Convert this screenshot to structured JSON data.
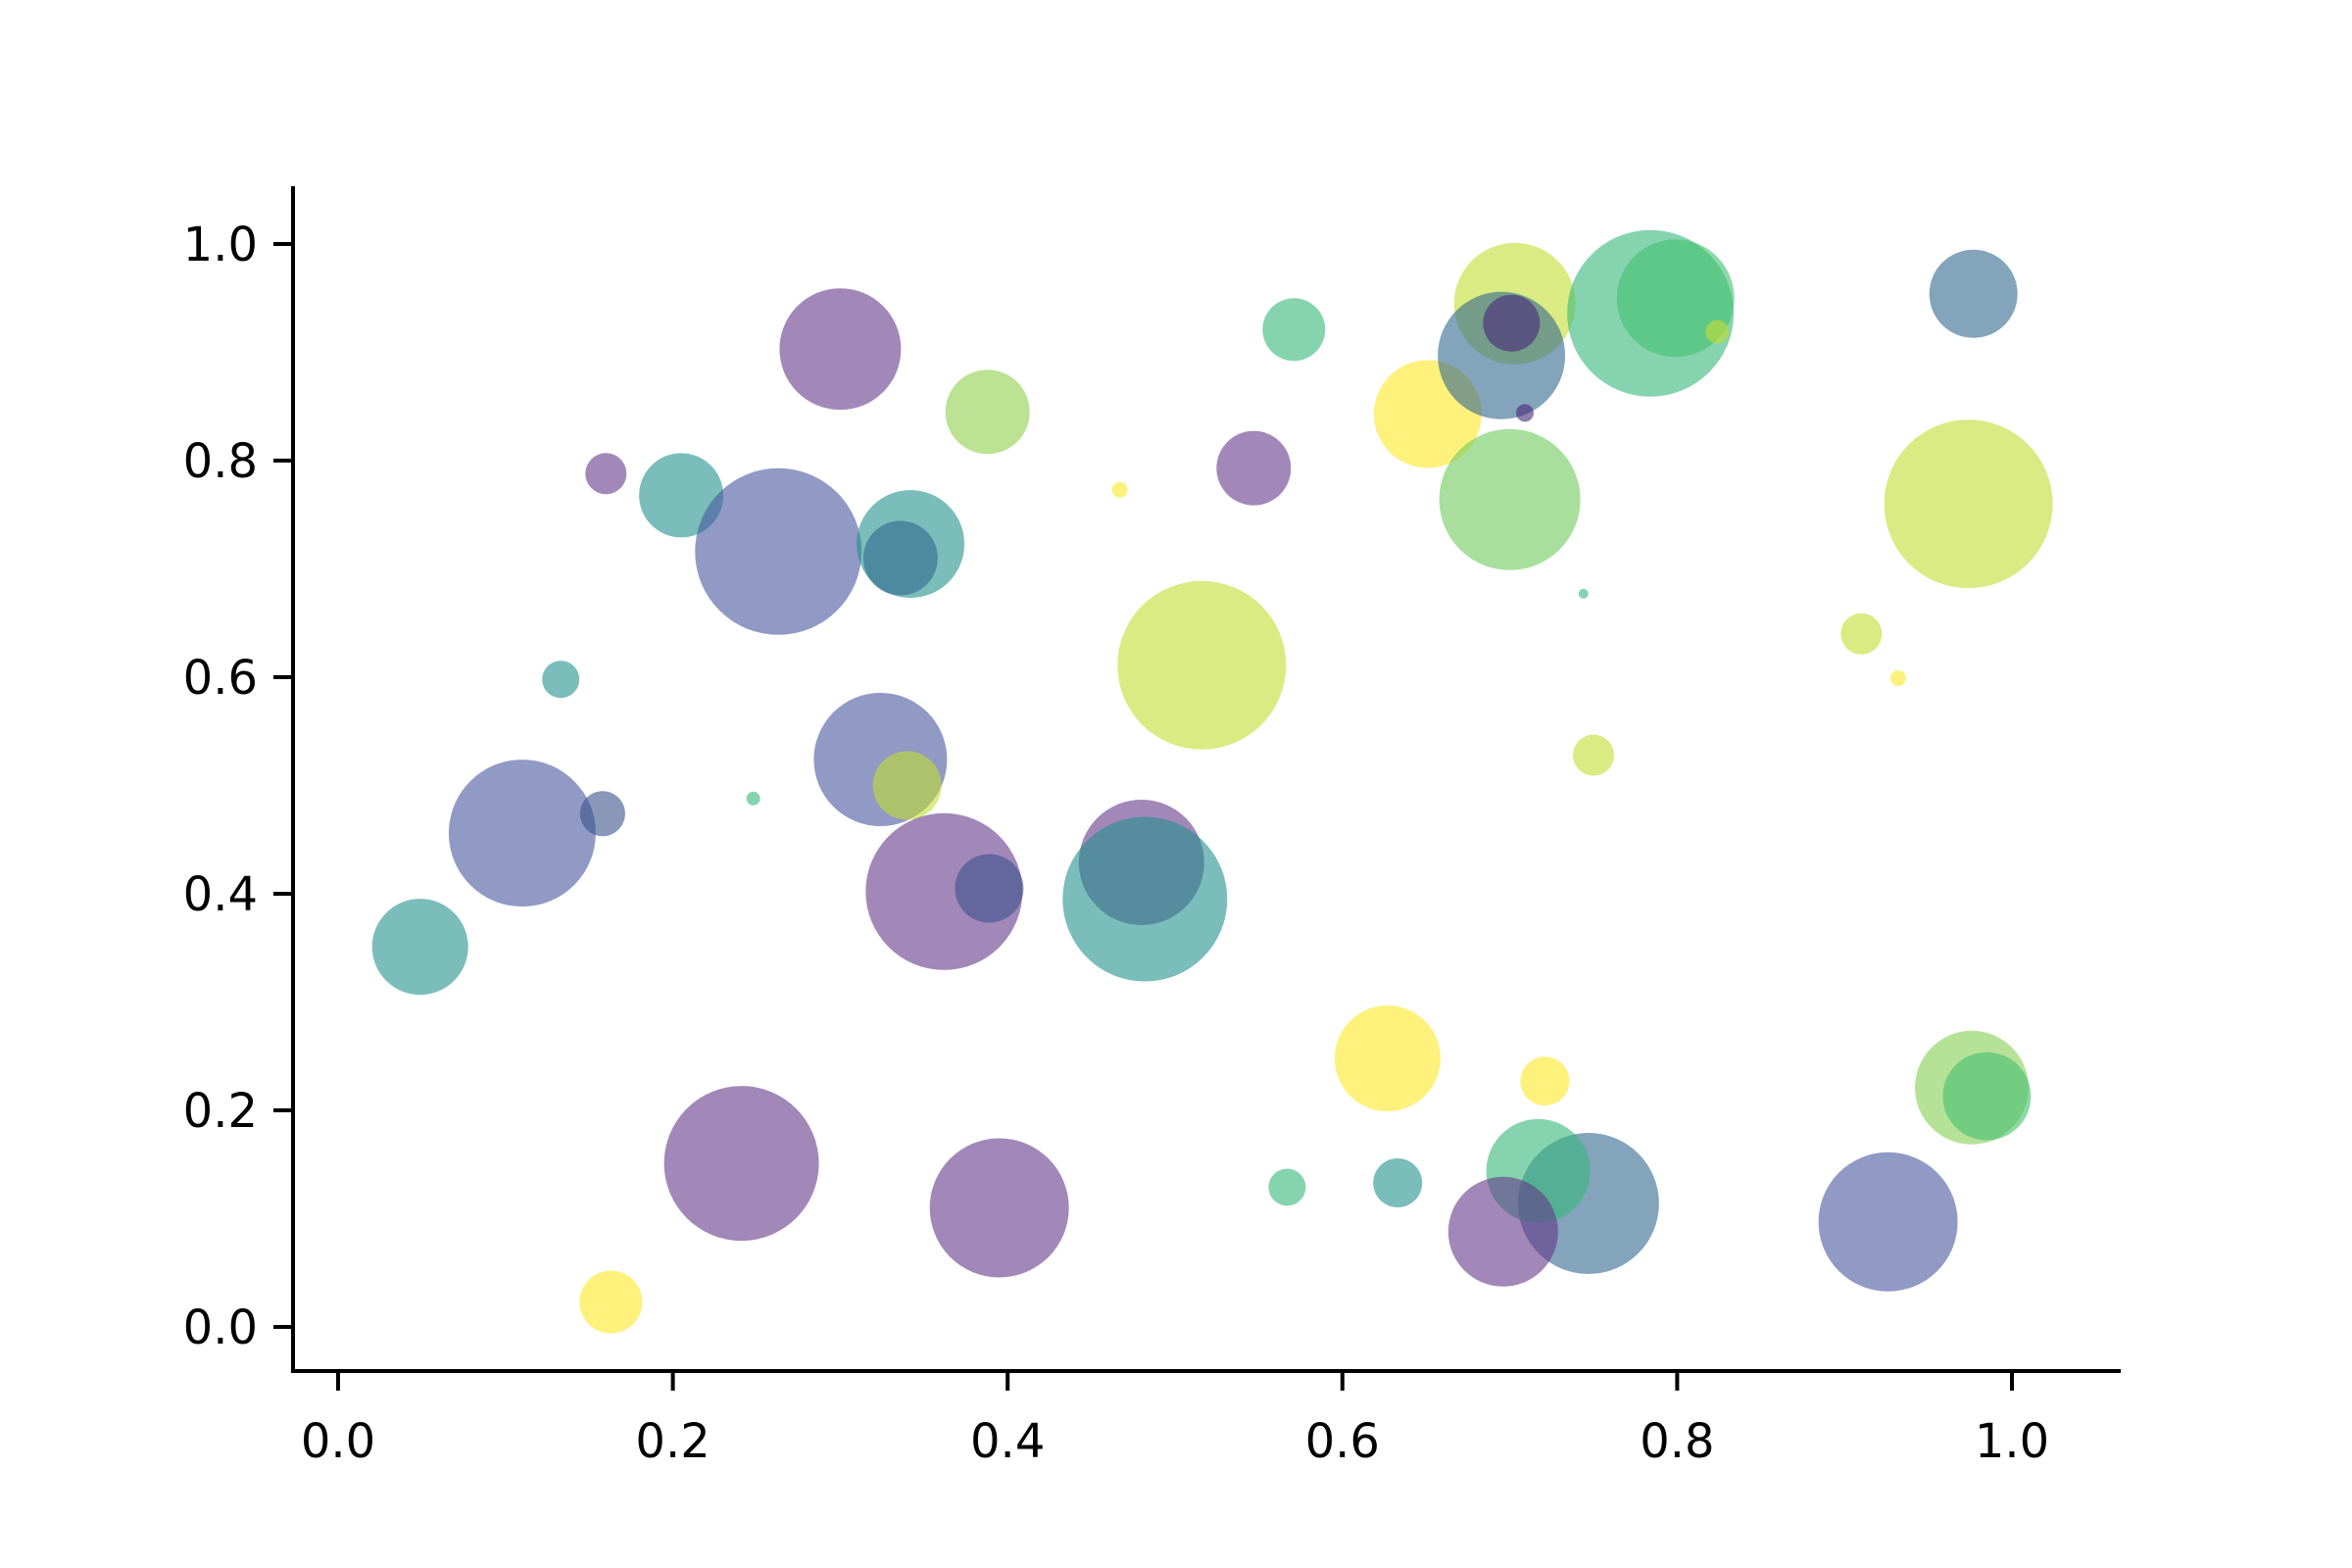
{
  "chart_data": {
    "type": "scatter",
    "subtype": "bubble",
    "title": "",
    "xlabel": "",
    "ylabel": "",
    "grid": false,
    "legend": false,
    "background": "#ffffff",
    "axis_color": "#000000",
    "marker_alpha": 0.6,
    "xlim": [
      -0.027,
      1.065
    ],
    "ylim": [
      -0.042,
      1.053
    ],
    "x_ticks": {
      "values": [
        0.0,
        0.2,
        0.4,
        0.6,
        0.8,
        1.0
      ],
      "labels": [
        "0.0",
        "0.2",
        "0.4",
        "0.6",
        "0.8",
        "1.0"
      ]
    },
    "y_ticks": {
      "values": [
        0.0,
        0.2,
        0.4,
        0.6,
        0.8,
        1.0
      ],
      "labels": [
        "0.0",
        "0.2",
        "0.4",
        "0.6",
        "0.8",
        "1.0"
      ]
    },
    "points": [
      {
        "x": 0.3,
        "y": 0.903,
        "r": 62,
        "color": "#643889"
      },
      {
        "x": 0.16,
        "y": 0.788,
        "r": 21,
        "color": "#643889"
      },
      {
        "x": 0.205,
        "y": 0.768,
        "r": 43,
        "color": "#21918c"
      },
      {
        "x": 0.263,
        "y": 0.716,
        "r": 85,
        "color": "#46569e"
      },
      {
        "x": 0.342,
        "y": 0.723,
        "r": 55,
        "color": "#21918c"
      },
      {
        "x": 0.336,
        "y": 0.71,
        "r": 38,
        "color": "#31688e"
      },
      {
        "x": 0.133,
        "y": 0.598,
        "r": 19,
        "color": "#21918c"
      },
      {
        "x": 0.11,
        "y": 0.456,
        "r": 75,
        "color": "#46569e"
      },
      {
        "x": 0.158,
        "y": 0.474,
        "r": 23,
        "color": "#3b528b"
      },
      {
        "x": 0.248,
        "y": 0.488,
        "r": 7,
        "color": "#35b779"
      },
      {
        "x": 0.049,
        "y": 0.351,
        "r": 49,
        "color": "#21918c"
      },
      {
        "x": 0.324,
        "y": 0.524,
        "r": 68,
        "color": "#46569e"
      },
      {
        "x": 0.34,
        "y": 0.5,
        "r": 35,
        "color": "#c3de30"
      },
      {
        "x": 0.362,
        "y": 0.402,
        "r": 80,
        "color": "#643889"
      },
      {
        "x": 0.389,
        "y": 0.405,
        "r": 35,
        "color": "#3b528b"
      },
      {
        "x": 0.241,
        "y": 0.151,
        "r": 79,
        "color": "#643889"
      },
      {
        "x": 0.163,
        "y": 0.023,
        "r": 32,
        "color": "#fde725"
      },
      {
        "x": 0.395,
        "y": 0.11,
        "r": 71,
        "color": "#643889"
      },
      {
        "x": 0.388,
        "y": 0.845,
        "r": 43,
        "color": "#8ed04b"
      },
      {
        "x": 0.571,
        "y": 0.921,
        "r": 32,
        "color": "#35b779"
      },
      {
        "x": 0.547,
        "y": 0.793,
        "r": 38,
        "color": "#643889"
      },
      {
        "x": 0.467,
        "y": 0.773,
        "r": 8,
        "color": "#fde725"
      },
      {
        "x": 0.516,
        "y": 0.611,
        "r": 86,
        "color": "#c3de30"
      },
      {
        "x": 0.48,
        "y": 0.429,
        "r": 64,
        "color": "#643889"
      },
      {
        "x": 0.482,
        "y": 0.395,
        "r": 84,
        "color": "#21918c"
      },
      {
        "x": 0.627,
        "y": 0.248,
        "r": 54,
        "color": "#fde725"
      },
      {
        "x": 0.721,
        "y": 0.227,
        "r": 25,
        "color": "#fde725"
      },
      {
        "x": 0.567,
        "y": 0.129,
        "r": 19,
        "color": "#35b779"
      },
      {
        "x": 0.633,
        "y": 0.133,
        "r": 25,
        "color": "#21918c"
      },
      {
        "x": 0.651,
        "y": 0.843,
        "r": 55,
        "color": "#fde725"
      },
      {
        "x": 0.703,
        "y": 0.945,
        "r": 62,
        "color": "#c3de30"
      },
      {
        "x": 0.695,
        "y": 0.897,
        "r": 65,
        "color": "#31688e"
      },
      {
        "x": 0.701,
        "y": 0.927,
        "r": 29,
        "color": "#482878"
      },
      {
        "x": 0.709,
        "y": 0.844,
        "r": 9,
        "color": "#482878"
      },
      {
        "x": 0.7,
        "y": 0.764,
        "r": 72,
        "color": "#6fc95c"
      },
      {
        "x": 0.744,
        "y": 0.677,
        "r": 5,
        "color": "#35b779"
      },
      {
        "x": 0.784,
        "y": 0.936,
        "r": 85,
        "color": "#35b779"
      },
      {
        "x": 0.799,
        "y": 0.95,
        "r": 60,
        "color": "#44bf70"
      },
      {
        "x": 0.824,
        "y": 0.919,
        "r": 12,
        "color": "#c3de30"
      },
      {
        "x": 0.977,
        "y": 0.954,
        "r": 45,
        "color": "#31688e"
      },
      {
        "x": 0.974,
        "y": 0.76,
        "r": 86,
        "color": "#c3de30"
      },
      {
        "x": 0.91,
        "y": 0.64,
        "r": 21,
        "color": "#c3de30"
      },
      {
        "x": 0.932,
        "y": 0.599,
        "r": 8,
        "color": "#fde725"
      },
      {
        "x": 0.75,
        "y": 0.528,
        "r": 21,
        "color": "#c3de30"
      },
      {
        "x": 0.747,
        "y": 0.114,
        "r": 72,
        "color": "#31688e"
      },
      {
        "x": 0.717,
        "y": 0.144,
        "r": 53,
        "color": "#35b779"
      },
      {
        "x": 0.696,
        "y": 0.088,
        "r": 56,
        "color": "#643889"
      },
      {
        "x": 0.926,
        "y": 0.097,
        "r": 71,
        "color": "#46569e"
      },
      {
        "x": 0.976,
        "y": 0.221,
        "r": 58,
        "color": "#86cf54"
      },
      {
        "x": 0.985,
        "y": 0.213,
        "r": 45,
        "color": "#44bf70"
      }
    ]
  }
}
